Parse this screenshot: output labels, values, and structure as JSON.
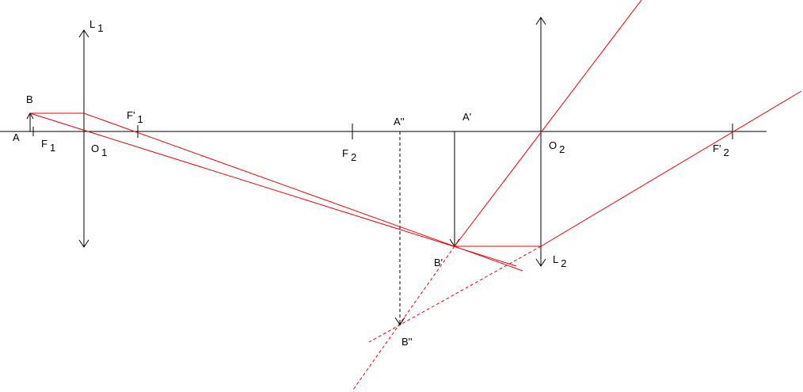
{
  "labels": [
    {
      "main": "L",
      "sub": "1"
    },
    {
      "main": "B"
    },
    {
      "main": "A"
    },
    {
      "main": "F",
      "sub": "1"
    },
    {
      "main": "F'",
      "sub": "1"
    },
    {
      "main": "O",
      "sub": "1"
    },
    {
      "main": "F",
      "sub": "2"
    },
    {
      "main": "A''"
    },
    {
      "main": "A'"
    },
    {
      "main": "O",
      "sub": "2"
    },
    {
      "main": "F'",
      "sub": "2"
    },
    {
      "main": "L",
      "sub": "2"
    },
    {
      "main": "B'"
    },
    {
      "main": "B''"
    }
  ]
}
